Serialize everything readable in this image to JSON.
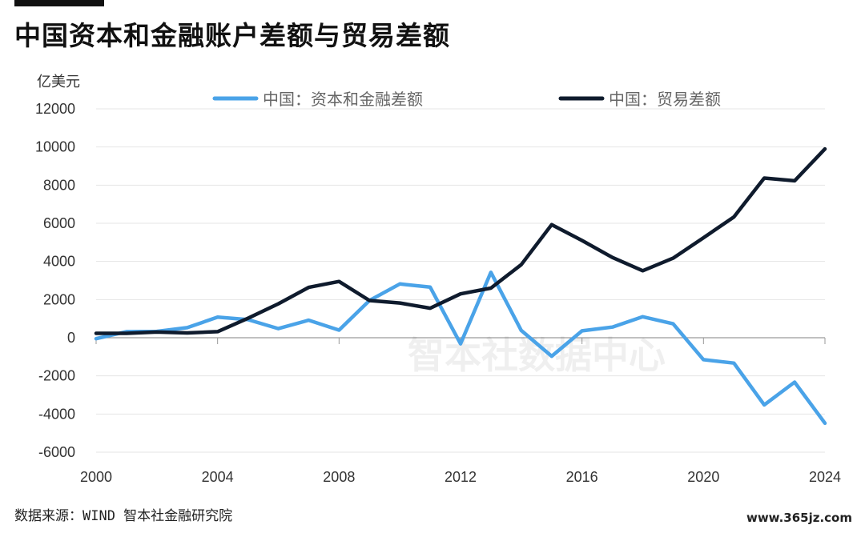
{
  "accent_color": "#111111",
  "chart_data": {
    "type": "line",
    "title": "中国资本和金融账户差额与贸易差额",
    "ylabel": "亿美元",
    "xlim": [
      2000,
      2024
    ],
    "ylim": [
      -6000,
      12000
    ],
    "x_ticks": [
      2000,
      2004,
      2008,
      2012,
      2016,
      2020,
      2024
    ],
    "y_ticks": [
      12000,
      10000,
      8000,
      6000,
      4000,
      2000,
      0,
      -2000,
      -4000,
      -6000
    ],
    "grid": true,
    "legend_position": "top",
    "x": [
      2000,
      2001,
      2002,
      2003,
      2004,
      2005,
      2006,
      2007,
      2008,
      2009,
      2010,
      2011,
      2012,
      2013,
      2014,
      2015,
      2016,
      2017,
      2018,
      2019,
      2020,
      2021,
      2022,
      2023,
      2024
    ],
    "series": [
      {
        "name": "中国：资本和金融差额",
        "color": "#4aa3e8",
        "values": [
          -50,
          320,
          330,
          530,
          1080,
          950,
          480,
          920,
          400,
          1950,
          2820,
          2650,
          -320,
          3430,
          380,
          -970,
          360,
          560,
          1100,
          730,
          -1150,
          -1330,
          -3520,
          -2330,
          -4480
        ]
      },
      {
        "name": "中国：贸易差额",
        "color": "#0f1b2d",
        "values": [
          230,
          230,
          300,
          250,
          320,
          1020,
          1780,
          2640,
          2950,
          1950,
          1820,
          1550,
          2300,
          2600,
          3830,
          5930,
          5100,
          4210,
          3510,
          4170,
          5240,
          6330,
          8370,
          8230,
          9900
        ]
      }
    ]
  },
  "watermark": "智本社数据中心",
  "source": "数据来源：WIND 智本社金融研究院",
  "site": "www.365jz.com"
}
